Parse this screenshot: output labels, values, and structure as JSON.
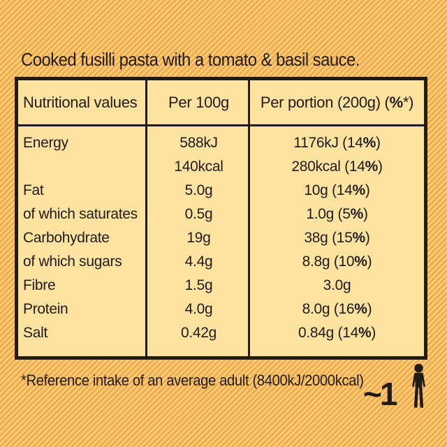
{
  "colors": {
    "stripe_light": "#fbcf76",
    "stripe_dark": "#f3a74f",
    "panel_bg": "#fde2a0",
    "ink": "#201c15"
  },
  "product": {
    "description": "Cooked fusilli pasta with a tomato & basil sauce."
  },
  "nutrition_table": {
    "headers": {
      "nutrient": "Nutritional values",
      "per_100g": "Per 100g",
      "per_portion": "Per portion (200g) (%*)"
    },
    "rows": [
      {
        "label": "Energy",
        "per100g": "588kJ",
        "perPortion": "1176kJ (14%)"
      },
      {
        "label": "",
        "per100g": "140kcal",
        "perPortion": "280kcal (14%)"
      },
      {
        "label": "Fat",
        "per100g": "5.0g",
        "perPortion": "10g (14%)"
      },
      {
        "label": "of which saturates",
        "per100g": "0.5g",
        "perPortion": "1.0g (5%)"
      },
      {
        "label": "Carbohydrate",
        "per100g": "19g",
        "perPortion": "38g (15%)"
      },
      {
        "label": "of which sugars",
        "per100g": "4.4g",
        "perPortion": "8.8g (10%)"
      },
      {
        "label": "Fibre",
        "per100g": "1.5g",
        "perPortion": "3.0g"
      },
      {
        "label": "Protein",
        "per100g": "4.0g",
        "perPortion": "8.0g (16%)"
      },
      {
        "label": "Salt",
        "per100g": "0.42g",
        "perPortion": "0.84g (14%)"
      }
    ]
  },
  "footnote": {
    "reference": "*Reference intake of an average adult (8400kJ/2000kcal)",
    "servings_approx": "~1"
  }
}
